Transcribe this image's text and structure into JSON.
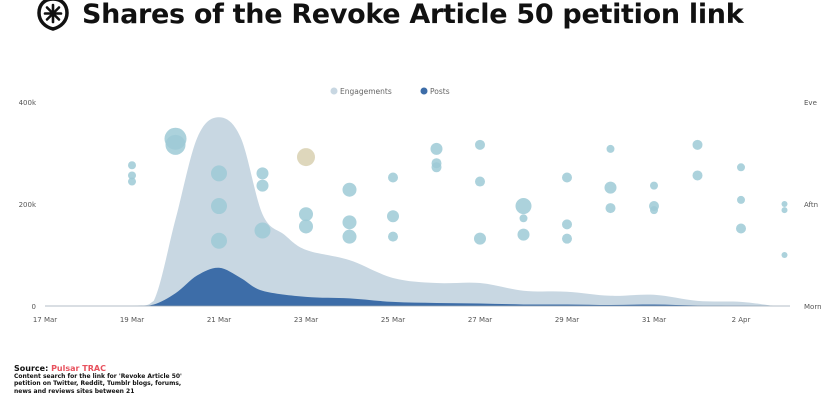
{
  "header": {
    "title": "Shares of the Revoke Article 50 petition link",
    "logo_icon": "asterisk-shield-icon"
  },
  "footer": {
    "source_label": "Source:",
    "source_name": "Pulsar TRAC",
    "source_color": "#e8525e",
    "description": "Content search for the link for 'Revoke Article 50' petition on Twitter, Reddit, Tumblr blogs, forums, news and reviews sites between 21"
  },
  "chart_data": {
    "type": "area",
    "title": "Shares of the Revoke Article 50 petition link",
    "ylim": [
      0,
      400000
    ],
    "y_ticks": [
      "0",
      "200k",
      "400k"
    ],
    "y_tick_values": [
      0,
      200000,
      400000
    ],
    "right_axis_ticks": [
      "Morn",
      "Aftn",
      "Eve"
    ],
    "x_ticks": [
      "17 Mar",
      "19 Mar",
      "21 Mar",
      "23 Mar",
      "25 Mar",
      "27 Mar",
      "29 Mar",
      "31 Mar",
      "2 Apr"
    ],
    "x_tick_dates": [
      "2019-03-17",
      "2019-03-19",
      "2019-03-21",
      "2019-03-23",
      "2019-03-25",
      "2019-03-27",
      "2019-03-29",
      "2019-03-31",
      "2019-04-02"
    ],
    "xlim": [
      "2019-03-17",
      "2019-04-03"
    ],
    "grid": false,
    "legend": {
      "placement": "top-center"
    },
    "series": [
      {
        "name": "Engagements",
        "color": "#c8d7e2",
        "x": [
          "2019-03-17",
          "2019-03-19",
          "2019-03-19T12",
          "2019-03-20",
          "2019-03-20T12",
          "2019-03-21",
          "2019-03-21T12",
          "2019-03-22",
          "2019-03-22T12",
          "2019-03-23",
          "2019-03-24",
          "2019-03-25",
          "2019-03-26",
          "2019-03-27",
          "2019-03-28",
          "2019-03-29",
          "2019-03-30",
          "2019-03-31",
          "2019-04-01",
          "2019-04-02",
          "2019-04-02T18"
        ],
        "values": [
          0,
          0,
          10000,
          170000,
          330000,
          370000,
          330000,
          180000,
          140000,
          110000,
          90000,
          55000,
          45000,
          45000,
          30000,
          28000,
          20000,
          22000,
          10000,
          8000,
          0
        ]
      },
      {
        "name": "Posts",
        "color": "#3d6da8",
        "x": [
          "2019-03-17",
          "2019-03-19",
          "2019-03-19T12",
          "2019-03-20",
          "2019-03-20T12",
          "2019-03-21",
          "2019-03-21T12",
          "2019-03-22",
          "2019-03-23",
          "2019-03-24",
          "2019-03-25",
          "2019-03-26",
          "2019-03-27",
          "2019-03-28",
          "2019-03-29",
          "2019-03-30",
          "2019-03-31",
          "2019-04-01",
          "2019-04-02",
          "2019-04-02T18"
        ],
        "values": [
          0,
          0,
          3000,
          25000,
          60000,
          75000,
          55000,
          30000,
          18000,
          15000,
          8000,
          6000,
          5000,
          3000,
          3000,
          2000,
          3000,
          1000,
          500,
          0
        ]
      }
    ],
    "bubbles": {
      "y_axis": "time of day (Morn=0, Aftn=0.5, Eve=1)",
      "color": "#9ecad6",
      "highlight_color": "#d8d0b0",
      "points": [
        {
          "date": "2019-03-19",
          "tod": 0.69,
          "size": 4
        },
        {
          "date": "2019-03-19",
          "tod": 0.64,
          "size": 4
        },
        {
          "date": "2019-03-19",
          "tod": 0.61,
          "size": 4
        },
        {
          "date": "2019-03-20",
          "tod": 0.82,
          "size": 11
        },
        {
          "date": "2019-03-20",
          "tod": 0.79,
          "size": 10
        },
        {
          "date": "2019-03-21",
          "tod": 0.65,
          "size": 8
        },
        {
          "date": "2019-03-21",
          "tod": 0.49,
          "size": 8
        },
        {
          "date": "2019-03-21",
          "tod": 0.32,
          "size": 8
        },
        {
          "date": "2019-03-22",
          "tod": 0.65,
          "size": 6
        },
        {
          "date": "2019-03-22",
          "tod": 0.59,
          "size": 6
        },
        {
          "date": "2019-03-22",
          "tod": 0.37,
          "size": 8
        },
        {
          "date": "2019-03-23",
          "tod": 0.73,
          "size": 9,
          "highlight": true
        },
        {
          "date": "2019-03-23",
          "tod": 0.45,
          "size": 7
        },
        {
          "date": "2019-03-23",
          "tod": 0.39,
          "size": 7
        },
        {
          "date": "2019-03-24",
          "tod": 0.57,
          "size": 7
        },
        {
          "date": "2019-03-24",
          "tod": 0.41,
          "size": 7
        },
        {
          "date": "2019-03-24",
          "tod": 0.34,
          "size": 7
        },
        {
          "date": "2019-03-25",
          "tod": 0.63,
          "size": 5
        },
        {
          "date": "2019-03-25",
          "tod": 0.44,
          "size": 6
        },
        {
          "date": "2019-03-25",
          "tod": 0.34,
          "size": 5
        },
        {
          "date": "2019-03-26",
          "tod": 0.77,
          "size": 6
        },
        {
          "date": "2019-03-26",
          "tod": 0.7,
          "size": 5
        },
        {
          "date": "2019-03-26",
          "tod": 0.68,
          "size": 5
        },
        {
          "date": "2019-03-27",
          "tod": 0.79,
          "size": 5
        },
        {
          "date": "2019-03-27",
          "tod": 0.61,
          "size": 5
        },
        {
          "date": "2019-03-27",
          "tod": 0.33,
          "size": 6
        },
        {
          "date": "2019-03-28",
          "tod": 0.49,
          "size": 8
        },
        {
          "date": "2019-03-28",
          "tod": 0.43,
          "size": 4
        },
        {
          "date": "2019-03-28",
          "tod": 0.35,
          "size": 6
        },
        {
          "date": "2019-03-29",
          "tod": 0.63,
          "size": 5
        },
        {
          "date": "2019-03-29",
          "tod": 0.4,
          "size": 5
        },
        {
          "date": "2019-03-29",
          "tod": 0.33,
          "size": 5
        },
        {
          "date": "2019-03-30",
          "tod": 0.77,
          "size": 4
        },
        {
          "date": "2019-03-30",
          "tod": 0.58,
          "size": 6
        },
        {
          "date": "2019-03-30",
          "tod": 0.48,
          "size": 5
        },
        {
          "date": "2019-03-31",
          "tod": 0.59,
          "size": 4
        },
        {
          "date": "2019-03-31",
          "tod": 0.49,
          "size": 5
        },
        {
          "date": "2019-03-31",
          "tod": 0.47,
          "size": 4
        },
        {
          "date": "2019-04-01",
          "tod": 0.79,
          "size": 5
        },
        {
          "date": "2019-04-01",
          "tod": 0.64,
          "size": 5
        },
        {
          "date": "2019-04-02",
          "tod": 0.68,
          "size": 4
        },
        {
          "date": "2019-04-02",
          "tod": 0.52,
          "size": 4
        },
        {
          "date": "2019-04-02",
          "tod": 0.38,
          "size": 5
        },
        {
          "date": "2019-04-03",
          "tod": 0.5,
          "size": 3
        },
        {
          "date": "2019-04-03",
          "tod": 0.47,
          "size": 3
        },
        {
          "date": "2019-04-03",
          "tod": 0.25,
          "size": 3
        }
      ]
    }
  }
}
